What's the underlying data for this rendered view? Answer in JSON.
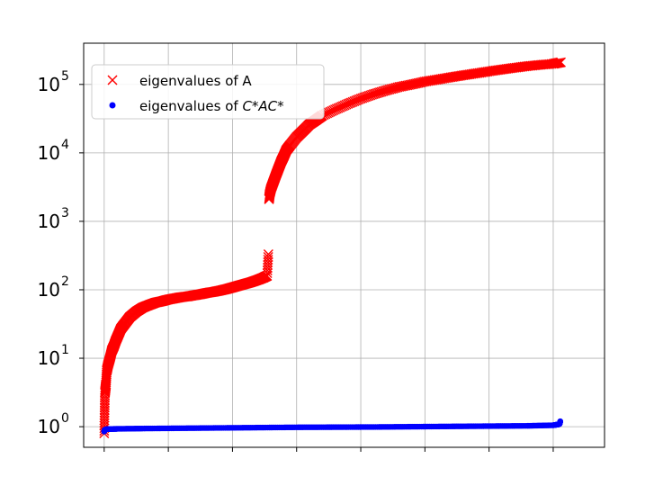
{
  "chart_data": {
    "type": "scatter",
    "title": "",
    "xlabel": "",
    "ylabel": "",
    "yscale": "log",
    "xlim": [
      -160,
      3900
    ],
    "ylim": [
      0.5,
      400000
    ],
    "grid": true,
    "legend_position": "top-left",
    "x_tick_values": [
      0,
      500,
      1000,
      1500,
      2000,
      2500,
      3000,
      3500
    ],
    "x_tick_labels_visible": false,
    "y_ticks": [
      {
        "value": 1,
        "base": "10",
        "exp": "0"
      },
      {
        "value": 10,
        "base": "10",
        "exp": "1"
      },
      {
        "value": 100,
        "base": "10",
        "exp": "2"
      },
      {
        "value": 1000,
        "base": "10",
        "exp": "3"
      },
      {
        "value": 10000,
        "base": "10",
        "exp": "4"
      },
      {
        "value": 100000,
        "base": "10",
        "exp": "5"
      }
    ],
    "series": [
      {
        "name": "eigenvalues of A",
        "marker": "x",
        "color": "#ff0000",
        "points": [
          [
            0,
            0.8
          ],
          [
            3,
            1.6
          ],
          [
            6,
            3.1
          ],
          [
            10,
            3.6
          ],
          [
            14,
            4.2
          ],
          [
            20,
            6.5
          ],
          [
            30,
            8
          ],
          [
            45,
            10
          ],
          [
            60,
            13
          ],
          [
            75,
            15
          ],
          [
            90,
            18
          ],
          [
            110,
            22
          ],
          [
            130,
            27
          ],
          [
            160,
            32
          ],
          [
            200,
            40
          ],
          [
            250,
            48
          ],
          [
            300,
            55
          ],
          [
            350,
            60
          ],
          [
            400,
            65
          ],
          [
            450,
            68
          ],
          [
            500,
            72
          ],
          [
            550,
            75
          ],
          [
            600,
            78
          ],
          [
            650,
            80
          ],
          [
            700,
            83
          ],
          [
            750,
            86
          ],
          [
            800,
            90
          ],
          [
            850,
            93
          ],
          [
            900,
            97
          ],
          [
            950,
            102
          ],
          [
            1000,
            108
          ],
          [
            1050,
            115
          ],
          [
            1100,
            122
          ],
          [
            1150,
            130
          ],
          [
            1200,
            140
          ],
          [
            1240,
            150
          ],
          [
            1270,
            160
          ],
          [
            1280,
            330
          ],
          [
            1285,
            2100
          ],
          [
            1290,
            2500
          ],
          [
            1300,
            3000
          ],
          [
            1320,
            3800
          ],
          [
            1340,
            4800
          ],
          [
            1360,
            6000
          ],
          [
            1380,
            7500
          ],
          [
            1400,
            9000
          ],
          [
            1420,
            11000
          ],
          [
            1450,
            13000
          ],
          [
            1500,
            17000
          ],
          [
            1550,
            21000
          ],
          [
            1600,
            26000
          ],
          [
            1650,
            30000
          ],
          [
            1700,
            35000
          ],
          [
            1800,
            43000
          ],
          [
            1900,
            52000
          ],
          [
            2000,
            62000
          ],
          [
            2100,
            72000
          ],
          [
            2200,
            82000
          ],
          [
            2300,
            92000
          ],
          [
            2400,
            100000
          ],
          [
            2500,
            110000
          ],
          [
            2600,
            118000
          ],
          [
            2700,
            127000
          ],
          [
            2800,
            136000
          ],
          [
            2900,
            145000
          ],
          [
            3000,
            155000
          ],
          [
            3100,
            165000
          ],
          [
            3200,
            175000
          ],
          [
            3300,
            185000
          ],
          [
            3400,
            193000
          ],
          [
            3500,
            200000
          ],
          [
            3560,
            210000
          ]
        ]
      },
      {
        "name": "eigenvalues of C*AC*",
        "marker": "dot",
        "color": "#0000ff",
        "points": [
          [
            0,
            0.85
          ],
          [
            5,
            0.9
          ],
          [
            20,
            0.92
          ],
          [
            100,
            0.93
          ],
          [
            300,
            0.94
          ],
          [
            600,
            0.95
          ],
          [
            900,
            0.96
          ],
          [
            1200,
            0.97
          ],
          [
            1500,
            0.98
          ],
          [
            1800,
            0.985
          ],
          [
            2100,
            0.99
          ],
          [
            2400,
            1.0
          ],
          [
            2700,
            1.01
          ],
          [
            3000,
            1.02
          ],
          [
            3300,
            1.03
          ],
          [
            3500,
            1.05
          ],
          [
            3540,
            1.08
          ],
          [
            3550,
            1.1
          ],
          [
            3555,
            1.2
          ]
        ]
      }
    ],
    "legend": [
      {
        "marker": "x",
        "color": "#ff0000",
        "label": "eigenvalues of A"
      },
      {
        "marker": "dot",
        "color": "#0000ff",
        "label_prefix": "eigenvalues of ",
        "label_math": "C*AC*"
      }
    ]
  }
}
